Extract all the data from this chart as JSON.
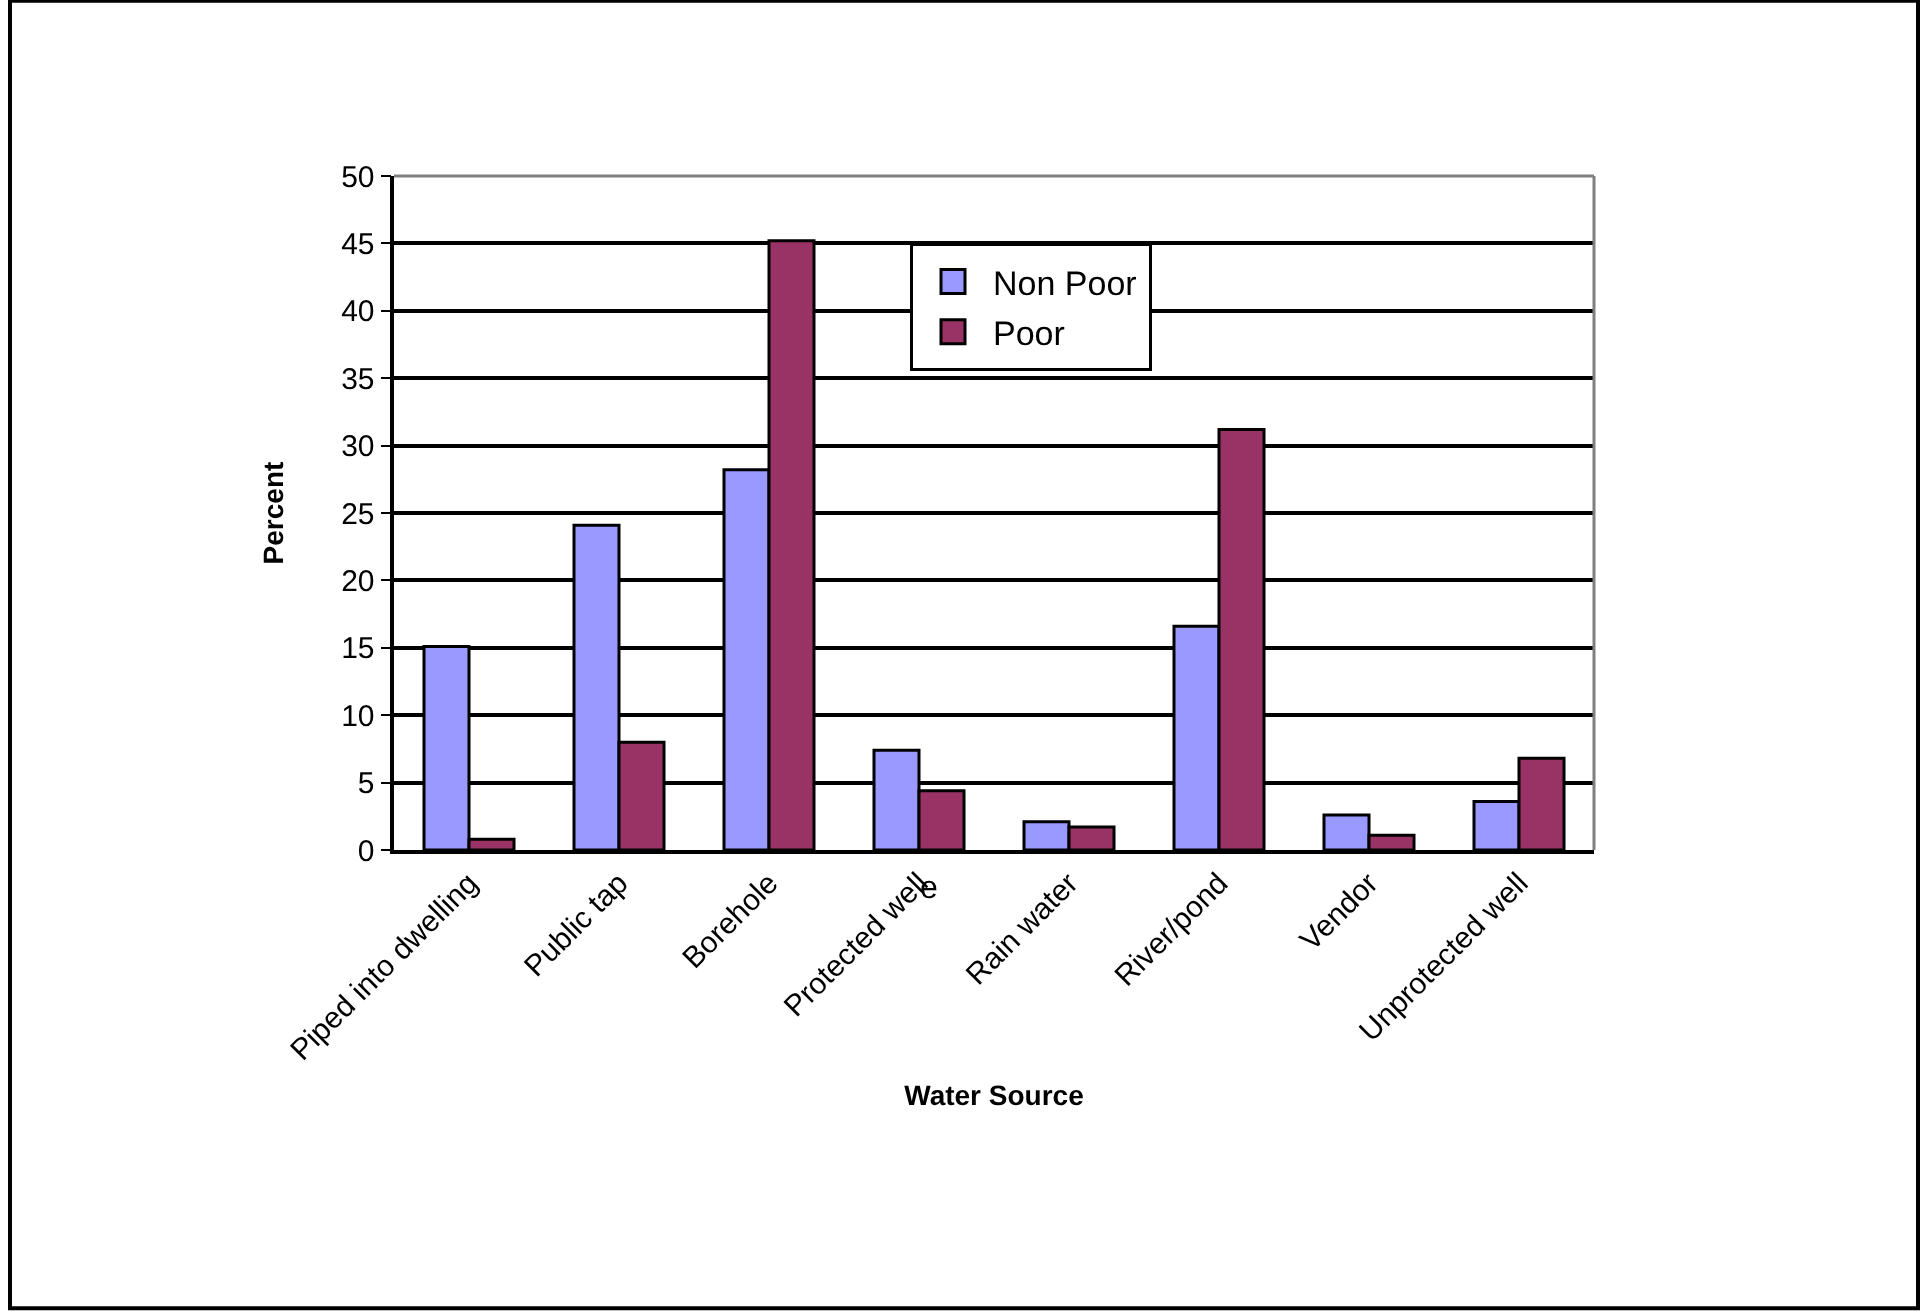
{
  "chart_data": {
    "type": "bar",
    "xlabel": "Water Source",
    "ylabel": "Percent",
    "categories": [
      "Piped into dwelling",
      "Public tap",
      "Borehole",
      "Protected well",
      "Rain water",
      "River/pond",
      "Vendor",
      "Unprotected well"
    ],
    "series": [
      {
        "name": "Non Poor",
        "color": "#9999ff",
        "values": [
          15.1,
          24.1,
          28.2,
          7.4,
          2.1,
          16.6,
          2.6,
          3.6
        ]
      },
      {
        "name": "Poor",
        "color": "#993366",
        "values": [
          0.8,
          8.0,
          45.2,
          4.4,
          1.7,
          31.2,
          1.1,
          6.8
        ]
      }
    ],
    "ylim": [
      0,
      50
    ],
    "yticks": [
      0,
      5,
      10,
      15,
      20,
      25,
      30,
      35,
      40,
      45,
      50
    ],
    "grid": "y",
    "legend": "top",
    "annotations": [
      "e"
    ]
  }
}
